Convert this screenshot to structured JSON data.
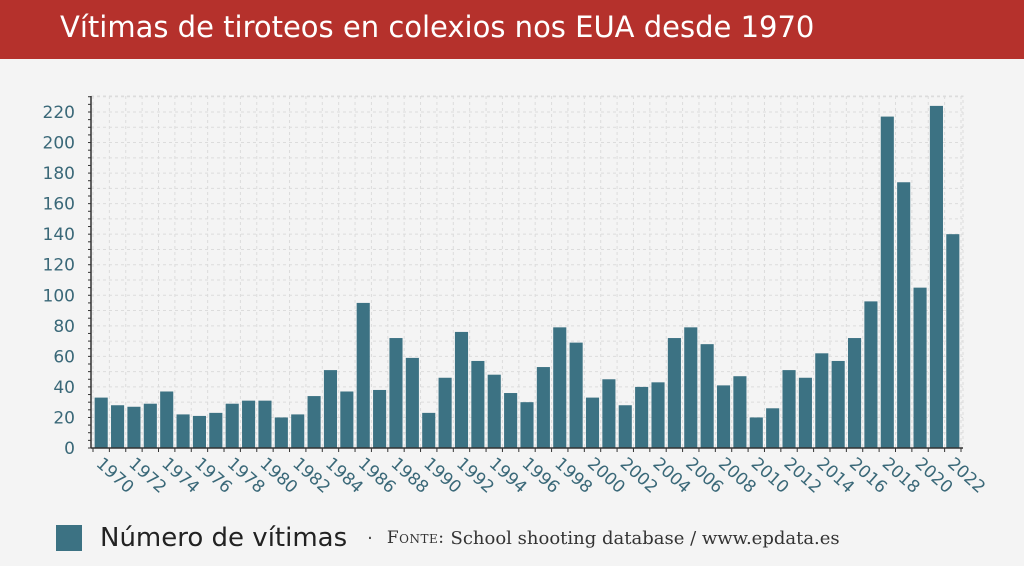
{
  "header": {
    "title": "Vítimas de tiroteos en colexios nos EUA desde 1970"
  },
  "legend": {
    "label": "Número de vítimas",
    "separator": "·",
    "source_label": "Fonte:",
    "source_text": "School shooting database / www.epdata.es"
  },
  "colors": {
    "title_bar": "#b5312c",
    "bar": "#3c7283",
    "grid": "#dcdcdc",
    "axis_text": "#3a6878"
  },
  "chart_data": {
    "type": "bar",
    "categories": [
      "1970",
      "1971",
      "1972",
      "1973",
      "1974",
      "1975",
      "1976",
      "1977",
      "1978",
      "1979",
      "1980",
      "1981",
      "1982",
      "1983",
      "1984",
      "1985",
      "1986",
      "1987",
      "1988",
      "1989",
      "1990",
      "1991",
      "1992",
      "1993",
      "1994",
      "1995",
      "1996",
      "1997",
      "1998",
      "1999",
      "2000",
      "2001",
      "2002",
      "2003",
      "2004",
      "2005",
      "2006",
      "2007",
      "2008",
      "2009",
      "2010",
      "2011",
      "2012",
      "2013",
      "2014",
      "2015",
      "2016",
      "2017",
      "2018",
      "2019",
      "2020",
      "2021",
      "2022"
    ],
    "x_tick_labels": [
      "1970",
      "1972",
      "1974",
      "1976",
      "1978",
      "1980",
      "1982",
      "1984",
      "1986",
      "1988",
      "1990",
      "1992",
      "1994",
      "1996",
      "1998",
      "2000",
      "2002",
      "2004",
      "2006",
      "2008",
      "2010",
      "2012",
      "2014",
      "2016",
      "2018",
      "2020",
      "2022"
    ],
    "series": [
      {
        "name": "Número de vítimas",
        "values": [
          33,
          28,
          27,
          29,
          37,
          22,
          21,
          23,
          29,
          31,
          31,
          20,
          22,
          34,
          51,
          37,
          95,
          38,
          72,
          59,
          23,
          46,
          76,
          57,
          48,
          36,
          30,
          53,
          79,
          69,
          33,
          45,
          28,
          40,
          43,
          72,
          79,
          68,
          41,
          47,
          20,
          26,
          51,
          46,
          62,
          57,
          72,
          96,
          217,
          174,
          105,
          224,
          140
        ]
      }
    ],
    "ylim": [
      0,
      230
    ],
    "yticks": [
      0,
      20,
      40,
      60,
      80,
      100,
      120,
      140,
      160,
      180,
      200,
      220
    ],
    "grid": true
  }
}
